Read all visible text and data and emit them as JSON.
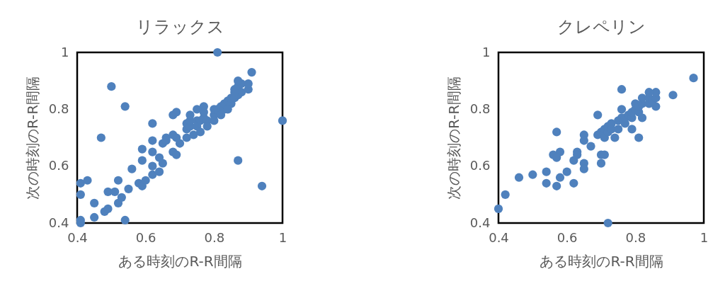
{
  "chart_data": [
    {
      "type": "scatter",
      "title": "リラックス",
      "xlabel": "ある時刻のR-R間隔",
      "ylabel": "次の時刻のR-R間隔",
      "xlim": [
        0.4,
        1
      ],
      "ylim": [
        0.4,
        1
      ],
      "xticks": [
        0.4,
        0.6,
        0.8,
        1
      ],
      "yticks": [
        0.4,
        0.6,
        0.8,
        1
      ],
      "grid": false,
      "marker": "circle",
      "series": [
        {
          "color": "#4f81bd",
          "x": [
            0.81,
            0.91,
            0.5,
            0.54,
            1.0,
            0.47,
            0.87,
            0.94,
            0.54,
            0.41,
            0.41,
            0.41,
            0.43,
            0.41,
            0.45,
            0.45,
            0.48,
            0.49,
            0.52,
            0.53,
            0.55,
            0.49,
            0.51,
            0.52,
            0.56,
            0.58,
            0.59,
            0.6,
            0.62,
            0.64,
            0.62,
            0.59,
            0.59,
            0.62,
            0.62,
            0.62,
            0.65,
            0.64,
            0.65,
            0.68,
            0.69,
            0.66,
            0.68,
            0.69,
            0.72,
            0.72,
            0.73,
            0.73,
            0.75,
            0.75,
            0.76,
            0.77,
            0.77,
            0.78,
            0.8,
            0.8,
            0.81,
            0.82,
            0.83,
            0.83,
            0.84,
            0.85,
            0.85,
            0.86,
            0.86,
            0.87,
            0.87,
            0.88,
            0.88,
            0.9,
            0.9,
            0.87,
            0.86,
            0.84,
            0.82,
            0.8,
            0.78,
            0.76,
            0.74,
            0.72,
            0.7,
            0.69,
            0.68,
            0.66,
            0.77,
            0.75,
            0.73
          ],
          "values": [
            1.0,
            0.93,
            0.88,
            0.81,
            0.76,
            0.7,
            0.62,
            0.53,
            0.41,
            0.4,
            0.41,
            0.54,
            0.55,
            0.5,
            0.47,
            0.42,
            0.44,
            0.45,
            0.47,
            0.49,
            0.52,
            0.51,
            0.51,
            0.55,
            0.59,
            0.54,
            0.53,
            0.55,
            0.57,
            0.58,
            0.6,
            0.62,
            0.66,
            0.65,
            0.69,
            0.75,
            0.61,
            0.63,
            0.68,
            0.78,
            0.79,
            0.7,
            0.65,
            0.64,
            0.73,
            0.75,
            0.74,
            0.76,
            0.74,
            0.76,
            0.76,
            0.77,
            0.79,
            0.76,
            0.78,
            0.8,
            0.8,
            0.81,
            0.8,
            0.82,
            0.83,
            0.82,
            0.84,
            0.84,
            0.87,
            0.85,
            0.88,
            0.86,
            0.89,
            0.87,
            0.89,
            0.9,
            0.86,
            0.8,
            0.78,
            0.76,
            0.74,
            0.72,
            0.71,
            0.7,
            0.68,
            0.7,
            0.71,
            0.69,
            0.81,
            0.8,
            0.78
          ]
        }
      ]
    },
    {
      "type": "scatter",
      "title": "クレペリン",
      "xlabel": "ある時刻のR-R間隔",
      "ylabel": "次の時刻のR-R間隔",
      "xlim": [
        0.4,
        1
      ],
      "ylim": [
        0.4,
        1
      ],
      "xticks": [
        0.4,
        0.6,
        0.8,
        1
      ],
      "yticks": [
        0.4,
        0.6,
        0.8,
        1
      ],
      "grid": false,
      "marker": "circle",
      "series": [
        {
          "color": "#4f81bd",
          "x": [
            0.97,
            0.91,
            0.76,
            0.86,
            0.81,
            0.69,
            0.57,
            0.65,
            0.58,
            0.56,
            0.57,
            0.62,
            0.63,
            0.63,
            0.65,
            0.65,
            0.7,
            0.71,
            0.7,
            0.54,
            0.6,
            0.58,
            0.5,
            0.46,
            0.54,
            0.57,
            0.62,
            0.42,
            0.4,
            0.72,
            0.65,
            0.67,
            0.74,
            0.79,
            0.82,
            0.69,
            0.7,
            0.71,
            0.71,
            0.72,
            0.72,
            0.73,
            0.73,
            0.75,
            0.75,
            0.76,
            0.77,
            0.77,
            0.78,
            0.79,
            0.79,
            0.8,
            0.8,
            0.81,
            0.81,
            0.82,
            0.82,
            0.84,
            0.84,
            0.85,
            0.86,
            0.86,
            0.84,
            0.76
          ],
          "values": [
            0.91,
            0.85,
            0.87,
            0.81,
            0.7,
            0.78,
            0.72,
            0.71,
            0.65,
            0.64,
            0.63,
            0.62,
            0.65,
            0.64,
            0.61,
            0.59,
            0.64,
            0.64,
            0.61,
            0.58,
            0.58,
            0.56,
            0.57,
            0.56,
            0.54,
            0.53,
            0.54,
            0.5,
            0.45,
            0.4,
            0.69,
            0.67,
            0.7,
            0.73,
            0.77,
            0.71,
            0.72,
            0.7,
            0.73,
            0.72,
            0.74,
            0.73,
            0.75,
            0.76,
            0.73,
            0.77,
            0.75,
            0.77,
            0.78,
            0.77,
            0.79,
            0.8,
            0.82,
            0.79,
            0.81,
            0.82,
            0.84,
            0.82,
            0.84,
            0.83,
            0.84,
            0.86,
            0.86,
            0.8
          ]
        }
      ]
    }
  ]
}
